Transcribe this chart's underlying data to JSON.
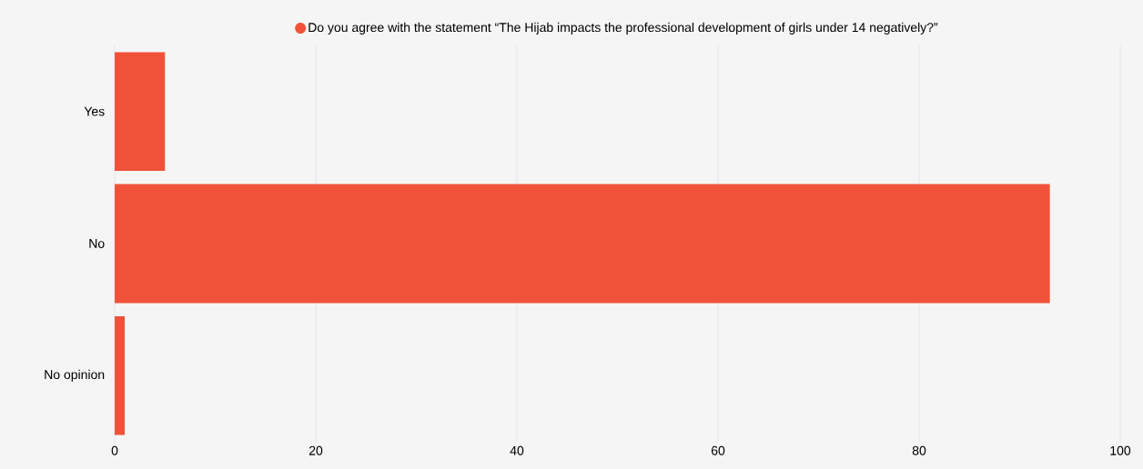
{
  "chart_data": {
    "type": "bar",
    "orientation": "horizontal",
    "categories": [
      "Yes",
      "No",
      "No opinion"
    ],
    "series": [
      {
        "name": "Do you agree with the statement “The Hijab impacts the professional development of girls under 14 negatively?”",
        "color": "#f05239",
        "values": [
          5,
          93,
          1
        ]
      }
    ],
    "xlim": [
      0,
      100
    ],
    "xticks": [
      0,
      20,
      40,
      60,
      80,
      100
    ],
    "grid": "x",
    "legend": "top"
  }
}
